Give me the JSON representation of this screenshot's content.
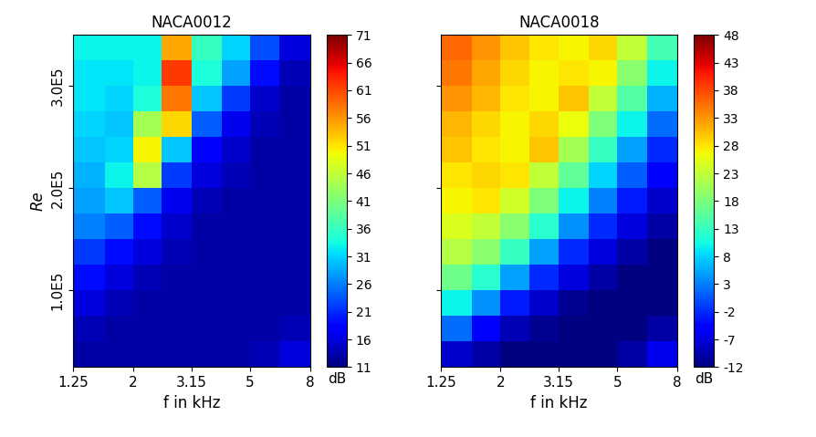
{
  "chart_data": [
    {
      "type": "heatmap",
      "title": "NACA0012",
      "x_label": "f in kHz",
      "y_label": "Re",
      "log": "x",
      "x": [
        1.25,
        1.6,
        2.0,
        2.5,
        3.15,
        4.0,
        5.0,
        6.3,
        8.0
      ],
      "y": [
        25000,
        50000,
        75000,
        100000,
        125000,
        150000,
        175000,
        200000,
        225000,
        250000,
        275000,
        300000,
        325000,
        350000
      ],
      "cells": [
        [
          13,
          13,
          13,
          13,
          13,
          13,
          14,
          16
        ],
        [
          14,
          13,
          13,
          13,
          13,
          13,
          13,
          14
        ],
        [
          16,
          14,
          13,
          13,
          13,
          13,
          13,
          13
        ],
        [
          19,
          16,
          14,
          13,
          13,
          13,
          13,
          13
        ],
        [
          22,
          19,
          16,
          14,
          13,
          13,
          13,
          13
        ],
        [
          26,
          24,
          19,
          15,
          13,
          13,
          13,
          13
        ],
        [
          28,
          30,
          24,
          17,
          14,
          13,
          13,
          13
        ],
        [
          29,
          33,
          45,
          22,
          16,
          14,
          13,
          13
        ],
        [
          30,
          31,
          50,
          30,
          18,
          15,
          13,
          13
        ],
        [
          31,
          30,
          44,
          52,
          24,
          17,
          14,
          13
        ],
        [
          32,
          31,
          34,
          58,
          30,
          22,
          15,
          13
        ],
        [
          32,
          32,
          33,
          62,
          34,
          28,
          19,
          14
        ],
        [
          33,
          33,
          33,
          55,
          36,
          31,
          23,
          16
        ]
      ],
      "xlim": [
        1.25,
        8
      ],
      "ylim": [
        25000,
        350000
      ],
      "xticks": [
        1.25,
        2,
        3.15,
        5,
        8
      ],
      "yticks": [
        {
          "value": 100000,
          "label": "1.0E5"
        },
        {
          "value": 200000,
          "label": "2.0E5"
        },
        {
          "value": 300000,
          "label": "3.0E5"
        }
      ],
      "colorbar": {
        "label": "dB",
        "range": [
          11,
          71
        ],
        "ticks": [
          11,
          16,
          21,
          26,
          31,
          36,
          41,
          46,
          51,
          56,
          61,
          66,
          71
        ]
      }
    },
    {
      "type": "heatmap",
      "title": "NACA0018",
      "x_label": "f in kHz",
      "log": "x",
      "tick_labels": "x",
      "x": [
        1.25,
        1.6,
        2.0,
        2.5,
        3.15,
        4.0,
        5.0,
        6.3,
        8.0
      ],
      "y": [
        25000,
        50000,
        75000,
        100000,
        125000,
        150000,
        175000,
        200000,
        225000,
        250000,
        275000,
        300000,
        325000,
        350000
      ],
      "cells": [
        [
          -8,
          -10,
          -12,
          -12,
          -12,
          -12,
          -10,
          -6
        ],
        [
          2,
          -5,
          -9,
          -11,
          -12,
          -12,
          -12,
          -10
        ],
        [
          10,
          4,
          -3,
          -8,
          -11,
          -12,
          -12,
          -12
        ],
        [
          17,
          12,
          5,
          -2,
          -7,
          -10,
          -12,
          -12
        ],
        [
          22,
          19,
          13,
          5,
          -2,
          -7,
          -10,
          -12
        ],
        [
          25,
          23,
          19,
          12,
          4,
          -2,
          -7,
          -10
        ],
        [
          27,
          28,
          24,
          18,
          10,
          3,
          -3,
          -8
        ],
        [
          28,
          29,
          28,
          23,
          16,
          8,
          1,
          -5
        ],
        [
          30,
          28,
          27,
          30,
          21,
          13,
          5,
          -2
        ],
        [
          31,
          29,
          27,
          29,
          26,
          18,
          10,
          2
        ],
        [
          33,
          31,
          28,
          27,
          30,
          23,
          15,
          6
        ],
        [
          35,
          32,
          29,
          27,
          28,
          27,
          19,
          10
        ],
        [
          36,
          33,
          30,
          28,
          27,
          29,
          23,
          14
        ]
      ],
      "xlim": [
        1.25,
        8
      ],
      "ylim": [
        25000,
        350000
      ],
      "xticks": [
        1.25,
        2,
        3.15,
        5,
        8
      ],
      "yticks": [
        {
          "value": 100000,
          "label": "1.0E5"
        },
        {
          "value": 200000,
          "label": "2.0E5"
        },
        {
          "value": 300000,
          "label": "3.0E5"
        }
      ],
      "colorbar": {
        "label": "dB",
        "range": [
          -12,
          48
        ],
        "ticks": [
          -12,
          -7,
          -2,
          3,
          8,
          13,
          18,
          23,
          28,
          33,
          38,
          43,
          48
        ]
      }
    }
  ]
}
